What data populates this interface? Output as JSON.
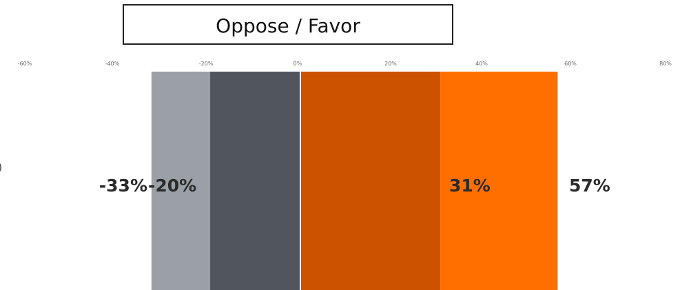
{
  "chart_data": {
    "type": "bar",
    "orientation": "horizontal",
    "stacked": true,
    "title": "Oppose / Favor",
    "xlim": [
      -0.6,
      0.8
    ],
    "x_ticks": [
      {
        "value": -0.6,
        "label": "-60%"
      },
      {
        "value": -0.4,
        "label": "-40%"
      },
      {
        "value": -0.2,
        "label": "-20%"
      },
      {
        "value": 0.0,
        "label": "0%"
      },
      {
        "value": 0.2,
        "label": "20%"
      },
      {
        "value": 0.4,
        "label": "40%"
      },
      {
        "value": 0.6,
        "label": "60%"
      },
      {
        "value": 0.8,
        "label": "80%"
      }
    ],
    "edge_label": ")",
    "segments": [
      {
        "from": -0.33,
        "to": -0.2,
        "color": "#9aa0a6",
        "label": "-33%"
      },
      {
        "from": -0.2,
        "to": 0.0,
        "color": "#51565e",
        "label": "-20%"
      },
      {
        "from": 0.0,
        "to": 0.31,
        "color": "#cc5200",
        "label": "31%"
      },
      {
        "from": 0.31,
        "to": 0.57,
        "color": "#ff6f00",
        "label": "57%"
      }
    ],
    "grid": false
  }
}
